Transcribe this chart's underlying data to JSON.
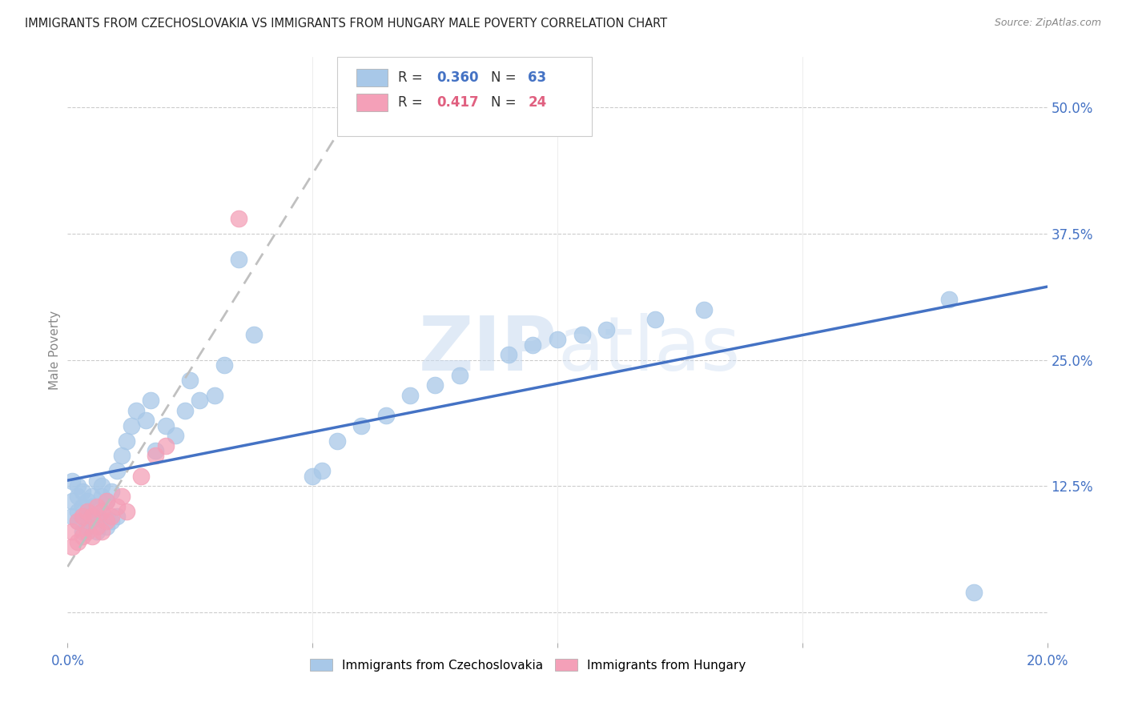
{
  "title": "IMMIGRANTS FROM CZECHOSLOVAKIA VS IMMIGRANTS FROM HUNGARY MALE POVERTY CORRELATION CHART",
  "source": "Source: ZipAtlas.com",
  "ylabel": "Male Poverty",
  "xlim": [
    0.0,
    0.2
  ],
  "ylim": [
    -0.03,
    0.55
  ],
  "color_czech": "#a8c8e8",
  "color_hungary": "#f4a0b8",
  "line_color_czech": "#4472c4",
  "line_color_hungary": "#c0c0c0",
  "watermark_zip": "ZIP",
  "watermark_atlas": "atlas",
  "legend_label1": "Immigrants from Czechoslovakia",
  "legend_label2": "Immigrants from Hungary",
  "background_color": "#ffffff",
  "grid_color": "#cccccc",
  "title_color": "#222222",
  "right_tick_color": "#4472c4",
  "czech_x": [
    0.001,
    0.001,
    0.001,
    0.002,
    0.002,
    0.002,
    0.002,
    0.003,
    0.003,
    0.003,
    0.003,
    0.004,
    0.004,
    0.004,
    0.004,
    0.005,
    0.005,
    0.005,
    0.006,
    0.006,
    0.006,
    0.007,
    0.007,
    0.007,
    0.008,
    0.008,
    0.009,
    0.009,
    0.01,
    0.01,
    0.011,
    0.012,
    0.013,
    0.014,
    0.016,
    0.017,
    0.018,
    0.02,
    0.022,
    0.024,
    0.025,
    0.027,
    0.03,
    0.032,
    0.035,
    0.038,
    0.05,
    0.052,
    0.055,
    0.06,
    0.065,
    0.07,
    0.075,
    0.08,
    0.09,
    0.095,
    0.1,
    0.105,
    0.11,
    0.12,
    0.13,
    0.18,
    0.185
  ],
  "czech_y": [
    0.095,
    0.11,
    0.13,
    0.09,
    0.1,
    0.115,
    0.125,
    0.08,
    0.095,
    0.105,
    0.12,
    0.085,
    0.1,
    0.11,
    0.095,
    0.09,
    0.105,
    0.115,
    0.08,
    0.095,
    0.13,
    0.1,
    0.115,
    0.125,
    0.085,
    0.11,
    0.09,
    0.12,
    0.095,
    0.14,
    0.155,
    0.17,
    0.185,
    0.2,
    0.19,
    0.21,
    0.16,
    0.185,
    0.175,
    0.2,
    0.23,
    0.21,
    0.215,
    0.245,
    0.35,
    0.275,
    0.135,
    0.14,
    0.17,
    0.185,
    0.195,
    0.215,
    0.225,
    0.235,
    0.255,
    0.265,
    0.27,
    0.275,
    0.28,
    0.29,
    0.3,
    0.31,
    0.02
  ],
  "hungary_x": [
    0.001,
    0.001,
    0.002,
    0.002,
    0.003,
    0.003,
    0.004,
    0.004,
    0.005,
    0.005,
    0.006,
    0.006,
    0.007,
    0.007,
    0.008,
    0.008,
    0.009,
    0.01,
    0.011,
    0.012,
    0.015,
    0.018,
    0.02,
    0.035
  ],
  "hungary_y": [
    0.065,
    0.08,
    0.07,
    0.09,
    0.075,
    0.095,
    0.08,
    0.1,
    0.075,
    0.095,
    0.085,
    0.105,
    0.08,
    0.1,
    0.09,
    0.11,
    0.095,
    0.105,
    0.115,
    0.1,
    0.135,
    0.155,
    0.165,
    0.39
  ]
}
